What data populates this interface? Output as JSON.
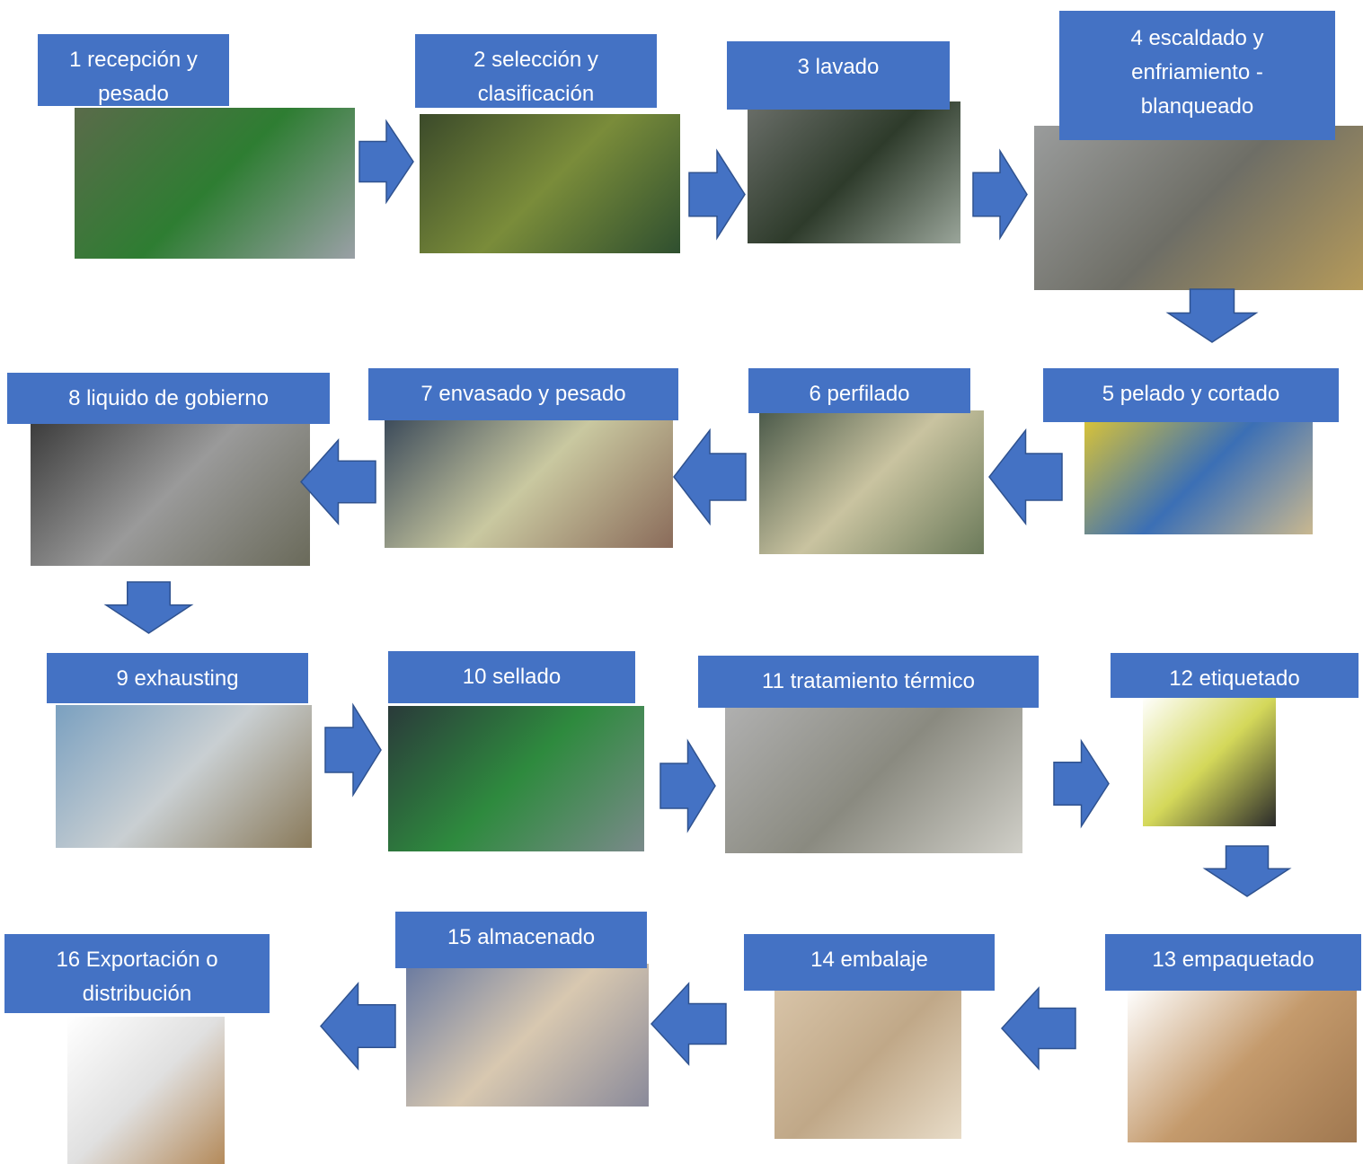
{
  "steps": [
    {
      "label": "1 recepción y pesado"
    },
    {
      "label": "2 selección y clasificación"
    },
    {
      "label": "3 lavado"
    },
    {
      "label": "4 escaldado y enfriamiento - blanqueado"
    },
    {
      "label": "5 pelado y cortado"
    },
    {
      "label": "6 perfilado"
    },
    {
      "label": "7 envasado y pesado"
    },
    {
      "label": "8 liquido de gobierno"
    },
    {
      "label": "9 exhausting"
    },
    {
      "label": "10 sellado"
    },
    {
      "label": "11 tratamiento térmico"
    },
    {
      "label": "12 etiquetado"
    },
    {
      "label": "13 empaquetado"
    },
    {
      "label": "14 embalaje"
    },
    {
      "label": "15 almacenado"
    },
    {
      "label": "16 Exportación o distribución"
    }
  ]
}
